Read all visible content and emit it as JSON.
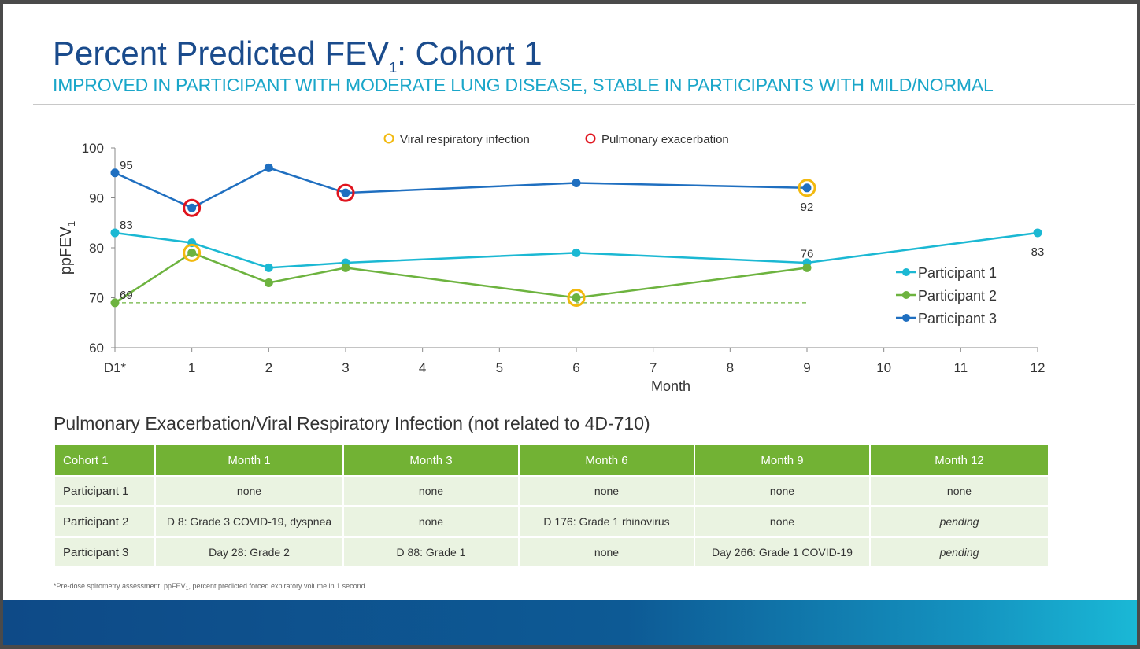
{
  "slide": {
    "title_main": "Percent Predicted FEV",
    "title_subscript": "1",
    "title_tail": ": Cohort 1",
    "subtitle": "IMPROVED IN PARTICIPANT WITH MODERATE LUNG DISEASE, STABLE IN PARTICIPANTS WITH MILD/NORMAL"
  },
  "chart_data": {
    "type": "line",
    "ylabel_main": "ppFEV",
    "ylabel_sub": "1",
    "xlabel": "Month",
    "ylim": [
      60,
      100
    ],
    "yticks": [
      60,
      70,
      80,
      90,
      100
    ],
    "x_ticks": [
      0,
      1,
      2,
      3,
      4,
      5,
      6,
      7,
      8,
      9,
      10,
      11,
      12
    ],
    "x_tick_labels": [
      "D1*",
      "1",
      "2",
      "3",
      "4",
      "5",
      "6",
      "7",
      "8",
      "9",
      "10",
      "11",
      "12"
    ],
    "series": [
      {
        "name": "Participant 1",
        "color": "#1bb8d3",
        "x": [
          0,
          1,
          2,
          3,
          6,
          9,
          12
        ],
        "values": [
          83,
          81,
          76,
          77,
          79,
          77,
          83
        ]
      },
      {
        "name": "Participant 2",
        "color": "#6db33f",
        "x": [
          0,
          1,
          2,
          3,
          6,
          9
        ],
        "values": [
          69,
          79,
          73,
          76,
          70,
          76
        ]
      },
      {
        "name": "Participant 3",
        "color": "#1f6fc0",
        "x": [
          0,
          1,
          2,
          3,
          6,
          9
        ],
        "values": [
          95,
          88,
          96,
          91,
          93,
          92
        ]
      }
    ],
    "baseline": {
      "value": 69,
      "x_from": 0,
      "x_to": 9,
      "color": "#6db33f",
      "style": "dashed"
    },
    "data_labels": [
      {
        "x": 0,
        "y": 95,
        "text": "95",
        "pos": "above-right"
      },
      {
        "x": 0,
        "y": 83,
        "text": "83",
        "pos": "above-right"
      },
      {
        "x": 0,
        "y": 69,
        "text": "69",
        "pos": "above-right"
      },
      {
        "x": 9,
        "y": 92,
        "text": "92",
        "pos": "below"
      },
      {
        "x": 9,
        "y": 76,
        "text": "76",
        "pos": "above"
      },
      {
        "x": 12,
        "y": 83,
        "text": "83",
        "pos": "below"
      }
    ],
    "event_markers": [
      {
        "type": "Pulmonary exacerbation",
        "x": 1,
        "y": 88
      },
      {
        "type": "Pulmonary exacerbation",
        "x": 3,
        "y": 91
      },
      {
        "type": "Viral respiratory infection",
        "x": 9,
        "y": 92
      },
      {
        "type": "Viral respiratory infection",
        "x": 1,
        "y": 79
      },
      {
        "type": "Viral respiratory infection",
        "x": 6,
        "y": 70
      }
    ],
    "marker_legend": [
      {
        "label": "Viral respiratory infection",
        "color": "#f2b90f"
      },
      {
        "label": "Pulmonary exacerbation",
        "color": "#e0141e"
      }
    ],
    "legend_position": "right"
  },
  "table": {
    "heading": "Pulmonary Exacerbation/Viral Respiratory Infection (not related to 4D-710)",
    "columns": [
      "Cohort 1",
      "Month 1",
      "Month 3",
      "Month 6",
      "Month 9",
      "Month 12"
    ],
    "rows": [
      [
        "Participant 1",
        "none",
        "none",
        "none",
        "none",
        "none"
      ],
      [
        "Participant 2",
        "D 8: Grade 3 COVID-19, dyspnea",
        "none",
        "D 176: Grade 1 rhinovirus",
        "none",
        "pending"
      ],
      [
        "Participant 3",
        "Day 28: Grade 2",
        "D 88: Grade 1",
        "none",
        "Day 266: Grade 1 COVID-19",
        "pending"
      ]
    ]
  },
  "footnote": {
    "part1": "*Pre-dose spirometry assessment.  ppFEV",
    "sub": "1",
    "part2": ", percent predicted forced expiratory volume in 1 second"
  }
}
